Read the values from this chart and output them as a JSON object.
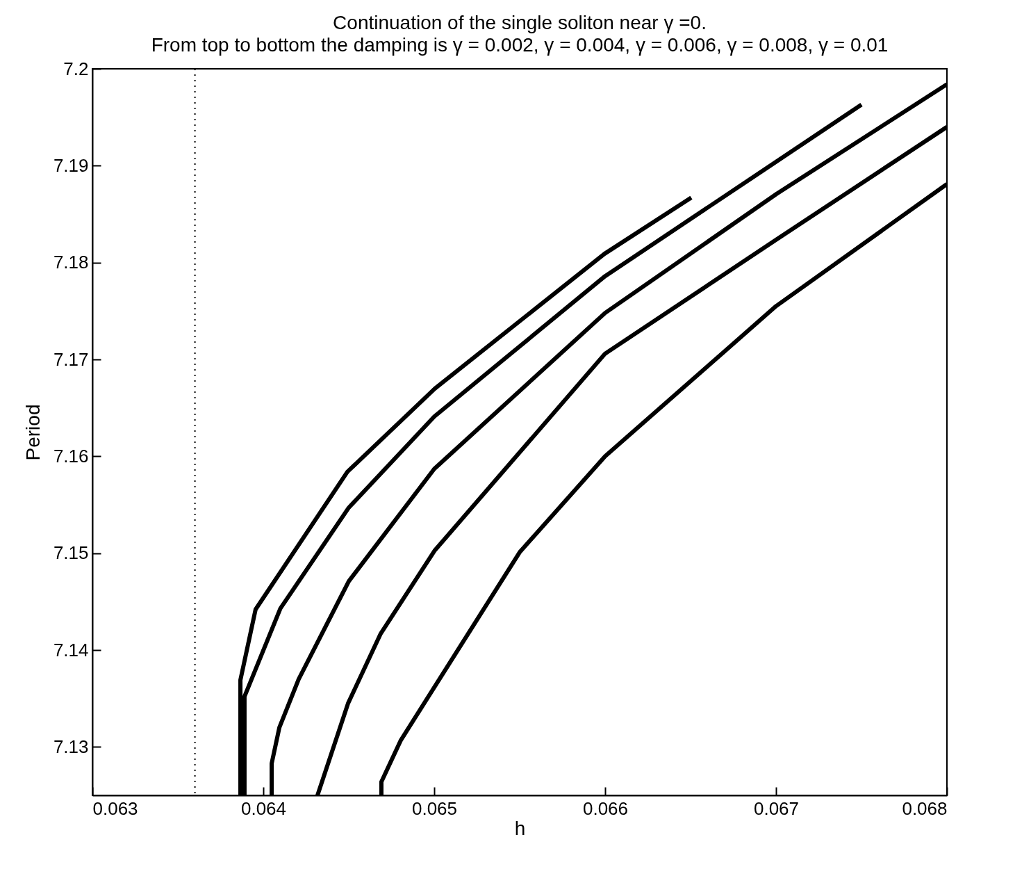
{
  "chart_data": {
    "type": "line",
    "title": "Continuation of the single soliton near γ =0.",
    "subtitle": "From top to bottom the damping is γ = 0.002, γ = 0.004, γ = 0.006, γ = 0.008, γ = 0.01",
    "xlabel": "h",
    "ylabel": "Period",
    "xlim": [
      0.063,
      0.068
    ],
    "xticks": [
      0.063,
      0.064,
      0.065,
      0.066,
      0.067,
      0.068
    ],
    "ylim": [
      7.125,
      7.2
    ],
    "yticks": [
      7.13,
      7.14,
      7.15,
      7.16,
      7.17,
      7.18,
      7.19,
      7.2
    ],
    "grid": false,
    "legend": false,
    "line_style": "solid",
    "ref_lines": [
      {
        "axis": "x",
        "value": 0.0636,
        "line_style": "dotted",
        "color": "#000000"
      }
    ],
    "series": [
      {
        "color": "#000000",
        "x": [
          0.063866,
          0.063866,
          0.063955,
          0.064492,
          0.065004,
          0.065996,
          0.066504
        ],
        "values": [
          7.125,
          7.1369,
          7.1442,
          7.1584,
          7.167,
          7.1809,
          7.1867
        ]
      },
      {
        "color": "#000000",
        "x": [
          0.06389,
          0.06389,
          0.0641,
          0.0645,
          0.065,
          0.066,
          0.0675
        ],
        "values": [
          7.125,
          7.1352,
          7.1443,
          7.1547,
          7.1641,
          7.1786,
          7.1963
        ]
      },
      {
        "color": "#000000",
        "x": [
          0.064049,
          0.064049,
          0.064094,
          0.064207,
          0.0645,
          0.065,
          0.066,
          0.067004,
          0.068
        ],
        "values": [
          7.125,
          7.1283,
          7.132,
          7.137,
          7.1471,
          7.1587,
          7.1748,
          7.1871,
          7.1984
        ]
      },
      {
        "color": "#000000",
        "x": [
          0.064317,
          0.064496,
          0.064687,
          0.065004,
          0.066,
          0.067004,
          0.068
        ],
        "values": [
          7.125,
          7.1345,
          7.1417,
          7.1503,
          7.1706,
          7.1824,
          7.194
        ]
      },
      {
        "color": "#000000",
        "x": [
          0.064691,
          0.064691,
          0.064805,
          0.0655,
          0.066,
          0.067,
          0.068
        ],
        "values": [
          7.125,
          7.1264,
          7.1307,
          7.1501,
          7.16,
          7.1755,
          7.1881
        ]
      }
    ]
  }
}
